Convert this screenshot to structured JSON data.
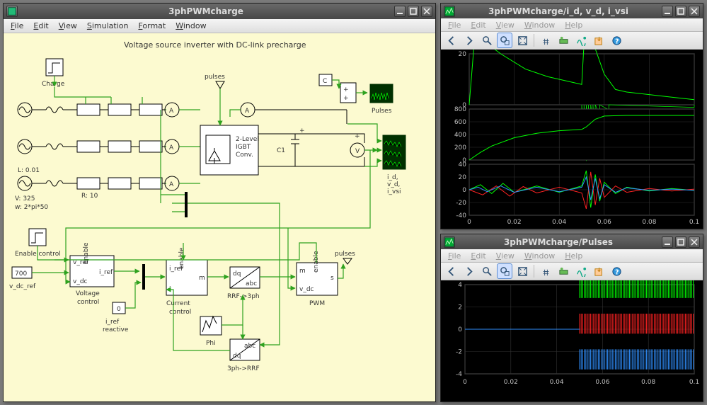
{
  "main": {
    "title": "3phPWMcharge",
    "menus": [
      "File",
      "Edit",
      "View",
      "Simulation",
      "Format",
      "Window"
    ],
    "heading": "Voltage source inverter with DC-link precharge",
    "labels": {
      "charge": "Charge",
      "L": "L: 0.01",
      "V": "V: 325",
      "w": "w: 2*pi*50",
      "R": "R: 10",
      "igbt1": "2-Level",
      "igbt2": "IGBT",
      "igbt3": "Conv.",
      "C1": "C1",
      "pulsesTop": "pulses",
      "Cblock": "C",
      "pulsesScope": "Pulses",
      "idScope1": "i_d,",
      "idScope2": "v_d,",
      "idScope3": "i_vsi",
      "enable": "Enable control",
      "vdc_ref": "700",
      "vdc_ref_lbl": "v_dc_ref",
      "vc_v_ref": "v_ref",
      "vc_v_dc": "v_dc",
      "vc_enable": "enable",
      "vc_i_ref": "i_ref",
      "voltageCtrl": "Voltage",
      "voltageCtrl2": "control",
      "iref_react_val": "0",
      "iref_react1": "i_ref",
      "iref_react2": "reactive",
      "cc_i_ref": "i_ref",
      "cc_enable": "enable",
      "cc_i": "i",
      "cc_m": "m",
      "currentCtrl1": "Current",
      "currentCtrl2": "control",
      "rrf1": "dq",
      "rrf2": "abc",
      "rrf_lbl": "RRF->3ph",
      "phi": "Phi",
      "sph_abc": "abc",
      "sph_dq": "dq",
      "sph_lbl": "3ph->RRF",
      "pwm_m": "m",
      "pwm_v_dc": "v_dc",
      "pwm_enable": "enable",
      "pwm_s": "s",
      "pwm_lbl": "PWM",
      "pulsesOut": "pulses"
    },
    "colors": {
      "canvas": "#fcfad0",
      "wire": "#2fa21f",
      "stroke": "#000000"
    }
  },
  "scope1": {
    "title": "3phPWMcharge/i_d, v_d, i_vsi",
    "menus": [
      "File",
      "Edit",
      "View",
      "Window",
      "Help"
    ],
    "panels": [
      {
        "yticks": [
          0,
          20
        ],
        "trace_color": "#00ff00",
        "trace": [
          [
            0,
            0
          ],
          [
            0.002,
            22
          ],
          [
            0.004,
            26
          ],
          [
            0.008,
            24
          ],
          [
            0.014,
            20
          ],
          [
            0.025,
            14
          ],
          [
            0.035,
            11
          ],
          [
            0.045,
            9
          ],
          [
            0.05,
            8
          ],
          [
            0.051,
            24
          ],
          [
            0.053,
            30
          ],
          [
            0.056,
            22
          ],
          [
            0.06,
            12
          ],
          [
            0.065,
            6
          ],
          [
            0.07,
            5
          ],
          [
            0.08,
            4
          ],
          [
            0.09,
            3
          ],
          [
            0.1,
            2
          ]
        ],
        "fill_trace": [
          [
            0.05,
            -2
          ],
          [
            0.051,
            -14
          ],
          [
            0.052,
            -22
          ],
          [
            0.053,
            -10
          ],
          [
            0.054,
            -18
          ],
          [
            0.055,
            -6
          ],
          [
            0.056,
            -14
          ],
          [
            0.058,
            -4
          ],
          [
            0.062,
            -2
          ],
          [
            0.1,
            -1
          ]
        ]
      },
      {
        "yticks": [
          0,
          200,
          400,
          600,
          800
        ],
        "trace_color": "#00ff00",
        "trace": [
          [
            0,
            0
          ],
          [
            0.005,
            120
          ],
          [
            0.01,
            220
          ],
          [
            0.02,
            350
          ],
          [
            0.03,
            420
          ],
          [
            0.04,
            460
          ],
          [
            0.05,
            480
          ],
          [
            0.052,
            520
          ],
          [
            0.056,
            640
          ],
          [
            0.06,
            690
          ],
          [
            0.07,
            700
          ],
          [
            0.08,
            700
          ],
          [
            0.09,
            700
          ],
          [
            0.1,
            700
          ]
        ]
      },
      {
        "yticks": [
          -40,
          -20,
          0,
          20,
          40
        ],
        "traces": [
          {
            "color": "#00ff00",
            "pts": [
              [
                0,
                0
              ],
              [
                0.005,
                8
              ],
              [
                0.01,
                -6
              ],
              [
                0.015,
                10
              ],
              [
                0.02,
                -4
              ],
              [
                0.03,
                6
              ],
              [
                0.04,
                -4
              ],
              [
                0.05,
                6
              ],
              [
                0.052,
                30
              ],
              [
                0.054,
                -28
              ],
              [
                0.056,
                24
              ],
              [
                0.058,
                -18
              ],
              [
                0.06,
                12
              ],
              [
                0.065,
                -6
              ],
              [
                0.07,
                4
              ],
              [
                0.08,
                -2
              ],
              [
                0.09,
                2
              ],
              [
                0.1,
                -1
              ]
            ]
          },
          {
            "color": "#ff2222",
            "pts": [
              [
                0,
                0
              ],
              [
                0.006,
                -8
              ],
              [
                0.012,
                6
              ],
              [
                0.018,
                -10
              ],
              [
                0.024,
                5
              ],
              [
                0.03,
                -5
              ],
              [
                0.04,
                4
              ],
              [
                0.05,
                -5
              ],
              [
                0.052,
                -30
              ],
              [
                0.054,
                28
              ],
              [
                0.056,
                -24
              ],
              [
                0.058,
                18
              ],
              [
                0.06,
                -12
              ],
              [
                0.065,
                6
              ],
              [
                0.07,
                -4
              ],
              [
                0.08,
                2
              ],
              [
                0.09,
                -2
              ],
              [
                0.1,
                1
              ]
            ]
          },
          {
            "color": "#3090ff",
            "pts": [
              [
                0,
                0
              ],
              [
                0.004,
                4
              ],
              [
                0.008,
                -3
              ],
              [
                0.014,
                6
              ],
              [
                0.02,
                -4
              ],
              [
                0.03,
                4
              ],
              [
                0.04,
                -3
              ],
              [
                0.05,
                4
              ],
              [
                0.052,
                20
              ],
              [
                0.054,
                -16
              ],
              [
                0.056,
                18
              ],
              [
                0.058,
                -14
              ],
              [
                0.06,
                8
              ],
              [
                0.065,
                -4
              ],
              [
                0.07,
                3
              ],
              [
                0.08,
                -1
              ],
              [
                0.09,
                1
              ],
              [
                0.1,
                -1
              ]
            ]
          }
        ]
      }
    ],
    "xticks": [
      0,
      0.02,
      0.04,
      0.06,
      0.08,
      0.1
    ],
    "xrange": [
      0,
      0.1
    ]
  },
  "scope2": {
    "title": "3phPWMcharge/Pulses",
    "menus": [
      "File",
      "Edit",
      "View",
      "Window",
      "Help"
    ],
    "yticks": [
      -4,
      -2,
      0,
      2,
      4
    ],
    "xticks": [
      0,
      0.02,
      0.04,
      0.06,
      0.08,
      0.1
    ],
    "xrange": [
      0,
      0.1
    ],
    "pulse_start": 0.05,
    "rows": [
      {
        "y": 3.7,
        "color": "#00ff00"
      },
      {
        "y": 0.5,
        "color": "#ff2222"
      },
      {
        "y": -2.7,
        "color": "#3090ff"
      }
    ]
  },
  "toolbar_icons": [
    {
      "name": "nav-left-icon",
      "glyph": "left"
    },
    {
      "name": "nav-right-icon",
      "glyph": "right"
    },
    {
      "name": "zoom-icon",
      "glyph": "zoom"
    },
    {
      "name": "zoom-box-icon",
      "glyph": "zoombox"
    },
    {
      "name": "zoom-extents-icon",
      "glyph": "extents"
    },
    {
      "name": "divider"
    },
    {
      "name": "cursor-icon",
      "glyph": "cursor"
    },
    {
      "name": "data-tip-icon",
      "glyph": "datatip"
    },
    {
      "name": "show-signal-icon",
      "glyph": "signal"
    },
    {
      "name": "export-icon",
      "glyph": "export"
    },
    {
      "name": "help-icon",
      "glyph": "help"
    }
  ]
}
